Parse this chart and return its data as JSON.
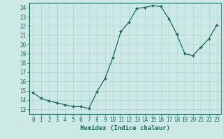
{
  "x": [
    0,
    1,
    2,
    3,
    4,
    5,
    6,
    7,
    8,
    9,
    10,
    11,
    12,
    13,
    14,
    15,
    16,
    17,
    18,
    19,
    20,
    21,
    22,
    23
  ],
  "y": [
    14.8,
    14.2,
    13.9,
    13.7,
    13.5,
    13.3,
    13.3,
    13.1,
    14.9,
    16.3,
    18.6,
    21.4,
    22.4,
    23.9,
    24.0,
    24.2,
    24.1,
    22.8,
    21.1,
    19.0,
    18.8,
    19.7,
    20.6,
    22.1
  ],
  "line_color": "#1a6b5a",
  "marker": "D",
  "marker_size": 2.0,
  "bg_color": "#cce9e5",
  "grid_color": "#b0d8d4",
  "xlabel": "Humidex (Indice chaleur)",
  "xlim": [
    -0.5,
    23.5
  ],
  "ylim": [
    12.5,
    24.5
  ],
  "yticks": [
    13,
    14,
    15,
    16,
    17,
    18,
    19,
    20,
    21,
    22,
    23,
    24
  ],
  "xticks": [
    0,
    1,
    2,
    3,
    4,
    5,
    6,
    7,
    8,
    9,
    10,
    11,
    12,
    13,
    14,
    15,
    16,
    17,
    18,
    19,
    20,
    21,
    22,
    23
  ],
  "tick_color": "#1a6b5a",
  "label_fontsize": 6.5,
  "tick_fontsize": 5.5,
  "linewidth": 0.9
}
